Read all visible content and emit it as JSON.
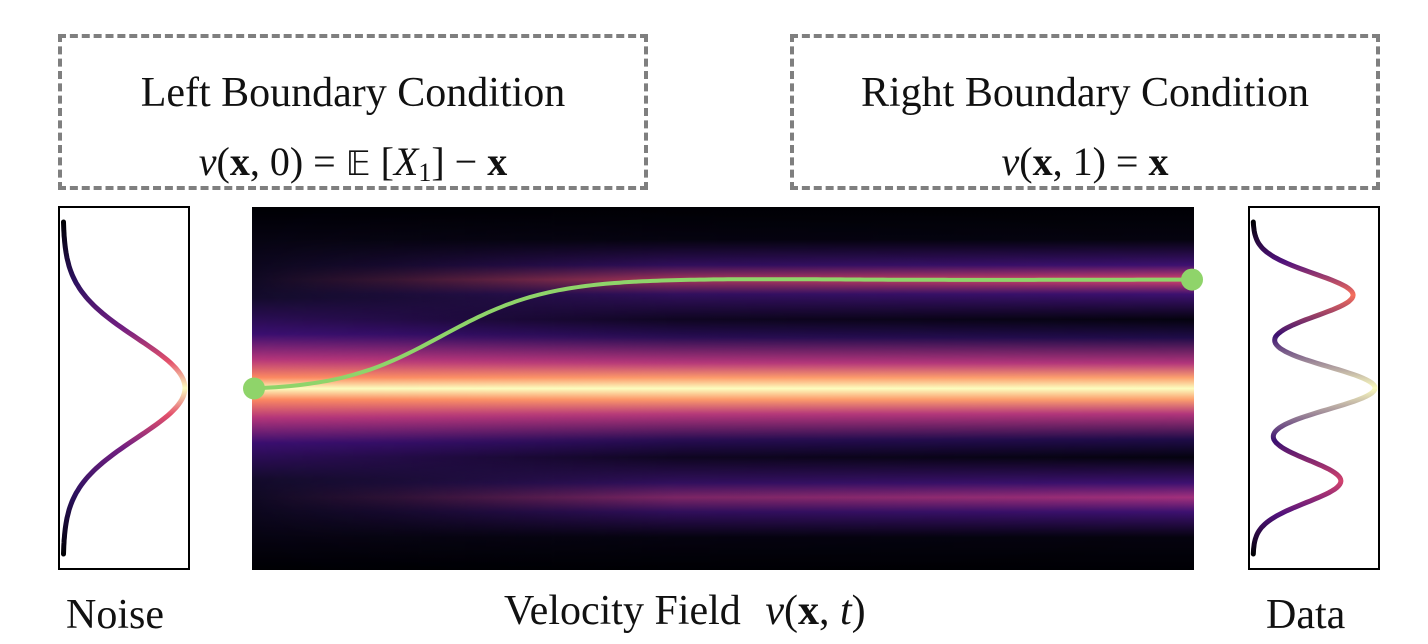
{
  "left_box": {
    "title": "Left Boundary Condition",
    "equation": {
      "lhs": "v(x, 0)",
      "rhs": "𝔼 [X₁] − x"
    }
  },
  "right_box": {
    "title": "Right Boundary Condition",
    "equation": {
      "lhs": "v(x, 1)",
      "rhs": "x"
    }
  },
  "captions": {
    "noise": "Noise",
    "velocity_field": "Velocity Field",
    "velocity_field_math": "v(x, t)",
    "data": "Data"
  },
  "noise_density": {
    "type": "gaussian",
    "mean": 0.5,
    "sigma": 0.15
  },
  "data_density": {
    "type": "mixture",
    "modes": [
      0.22,
      0.5,
      0.78
    ]
  },
  "trajectory": {
    "start": 0.5,
    "end": 0.2
  },
  "colors": {
    "trajectory": "#8fd46a",
    "dashed_border": "#7f7f7f",
    "colormap": "magma"
  }
}
